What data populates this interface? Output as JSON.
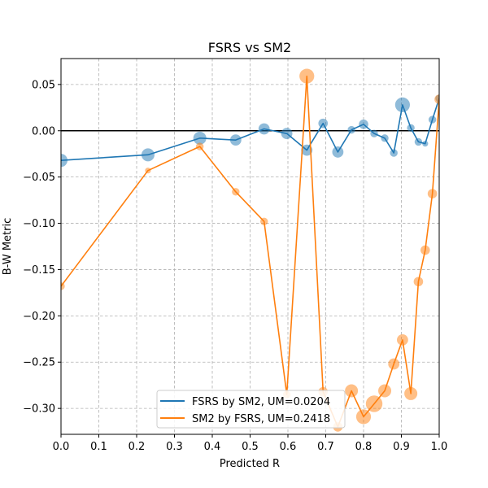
{
  "chart_data": {
    "type": "line",
    "title": "FSRS vs SM2",
    "xlabel": "Predicted R",
    "ylabel": "B-W Metric",
    "xlim": [
      0.0,
      1.0
    ],
    "ylim": [
      -0.328,
      0.078
    ],
    "xticks": [
      "0.0",
      "0.1",
      "0.2",
      "0.3",
      "0.4",
      "0.5",
      "0.6",
      "0.7",
      "0.8",
      "0.9",
      "1.0"
    ],
    "xtick_values": [
      0.0,
      0.1,
      0.2,
      0.3,
      0.4,
      0.5,
      0.6,
      0.7,
      0.8,
      0.9,
      1.0
    ],
    "yticks": [
      "0.05",
      "0.00",
      "−0.05",
      "−0.10",
      "−0.15",
      "−0.20",
      "−0.25",
      "−0.30"
    ],
    "ytick_values": [
      0.05,
      0.0,
      -0.05,
      -0.1,
      -0.15,
      -0.2,
      -0.25,
      -0.3
    ],
    "grid": true,
    "reference_line": 0.0,
    "legend_position": "lower-center",
    "series": [
      {
        "name": "FSRS by SM2, UM=0.0204",
        "color": "#1f77b4",
        "points": [
          {
            "x": 0.0,
            "y": -0.032,
            "n": 5
          },
          {
            "x": 0.23,
            "y": -0.026,
            "n": 5
          },
          {
            "x": 0.367,
            "y": -0.008,
            "n": 5
          },
          {
            "x": 0.462,
            "y": -0.01,
            "n": 4
          },
          {
            "x": 0.537,
            "y": 0.002,
            "n": 4
          },
          {
            "x": 0.597,
            "y": -0.003,
            "n": 4
          },
          {
            "x": 0.65,
            "y": -0.021,
            "n": 4
          },
          {
            "x": 0.693,
            "y": 0.008,
            "n": 3
          },
          {
            "x": 0.732,
            "y": -0.023,
            "n": 4
          },
          {
            "x": 0.768,
            "y": 0.001,
            "n": 2
          },
          {
            "x": 0.8,
            "y": 0.007,
            "n": 3
          },
          {
            "x": 0.828,
            "y": -0.003,
            "n": 2
          },
          {
            "x": 0.856,
            "y": -0.008,
            "n": 2
          },
          {
            "x": 0.88,
            "y": -0.024,
            "n": 2
          },
          {
            "x": 0.903,
            "y": 0.028,
            "n": 6
          },
          {
            "x": 0.925,
            "y": 0.003,
            "n": 2
          },
          {
            "x": 0.945,
            "y": -0.012,
            "n": 2
          },
          {
            "x": 0.963,
            "y": -0.014,
            "n": 1
          },
          {
            "x": 0.982,
            "y": 0.012,
            "n": 2
          },
          {
            "x": 1.0,
            "y": 0.035,
            "n": 2
          }
        ]
      },
      {
        "name": "SM2 by FSRS, UM=0.2418",
        "color": "#ff7f0e",
        "points": [
          {
            "x": 0.0,
            "y": -0.168,
            "n": 2
          },
          {
            "x": 0.23,
            "y": -0.043,
            "n": 1
          },
          {
            "x": 0.367,
            "y": -0.017,
            "n": 2
          },
          {
            "x": 0.462,
            "y": -0.066,
            "n": 2
          },
          {
            "x": 0.537,
            "y": -0.098,
            "n": 2
          },
          {
            "x": 0.597,
            "y": -0.285,
            "n": 2
          },
          {
            "x": 0.65,
            "y": 0.059,
            "n": 6
          },
          {
            "x": 0.693,
            "y": -0.282,
            "n": 3
          },
          {
            "x": 0.732,
            "y": -0.32,
            "n": 3
          },
          {
            "x": 0.768,
            "y": -0.281,
            "n": 5
          },
          {
            "x": 0.8,
            "y": -0.309,
            "n": 6
          },
          {
            "x": 0.828,
            "y": -0.295,
            "n": 7
          },
          {
            "x": 0.856,
            "y": -0.281,
            "n": 5
          },
          {
            "x": 0.88,
            "y": -0.252,
            "n": 4
          },
          {
            "x": 0.903,
            "y": -0.226,
            "n": 4
          },
          {
            "x": 0.925,
            "y": -0.284,
            "n": 5
          },
          {
            "x": 0.945,
            "y": -0.163,
            "n": 3
          },
          {
            "x": 0.963,
            "y": -0.129,
            "n": 3
          },
          {
            "x": 0.982,
            "y": -0.068,
            "n": 3
          },
          {
            "x": 1.0,
            "y": 0.034,
            "n": 3
          }
        ]
      }
    ]
  }
}
